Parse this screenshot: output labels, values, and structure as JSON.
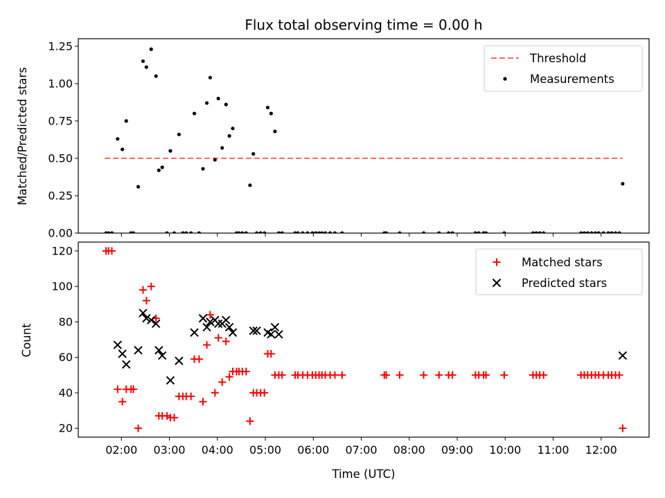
{
  "chart_data": [
    {
      "type": "scatter",
      "title": "Flux total observing time = 0.00 h",
      "xlabel": "",
      "ylabel": "Matched/Predicted stars",
      "xlim": [
        1.1,
        13.0
      ],
      "ylim": [
        0.0,
        1.3
      ],
      "yticks": [
        0.0,
        0.25,
        0.5,
        0.75,
        1.0,
        1.25
      ],
      "ytick_labels": [
        "0.00",
        "0.25",
        "0.50",
        "0.75",
        "1.00",
        "1.25"
      ],
      "xticks": [
        2,
        3,
        4,
        5,
        6,
        7,
        8,
        9,
        10,
        11,
        12
      ],
      "legend": [
        "Threshold",
        "Measurements"
      ],
      "legend_position": "top-right",
      "threshold": {
        "name": "Threshold",
        "y": 0.5,
        "x": [
          1.65,
          12.45
        ],
        "color": "#ff6666"
      },
      "series": [
        {
          "name": "Measurements",
          "color": "#000000",
          "x": [
            1.68,
            1.73,
            1.8,
            1.92,
            2.02,
            2.1,
            2.2,
            2.25,
            2.35,
            2.45,
            2.52,
            2.62,
            2.72,
            2.78,
            2.85,
            2.95,
            3.02,
            3.1,
            3.2,
            3.28,
            3.35,
            3.45,
            3.52,
            3.62,
            3.7,
            3.78,
            3.85,
            3.95,
            4.02,
            4.1,
            4.18,
            4.25,
            4.32,
            4.4,
            4.45,
            4.52,
            4.6,
            4.68,
            4.75,
            4.82,
            4.9,
            4.98,
            5.05,
            5.12,
            5.2,
            5.28,
            5.35,
            5.62,
            5.68,
            5.78,
            5.88,
            5.98,
            6.05,
            6.12,
            6.18,
            6.25,
            6.35,
            6.45,
            6.6,
            7.48,
            7.52,
            7.8,
            8.3,
            8.62,
            8.82,
            8.9,
            9.38,
            9.45,
            9.55,
            9.6,
            9.98,
            10.58,
            10.65,
            10.72,
            10.8,
            11.58,
            11.65,
            11.72,
            11.8,
            11.88,
            11.95,
            12.05,
            12.15,
            12.22,
            12.3,
            12.38,
            12.45
          ],
          "y": [
            0.0,
            0.0,
            0.0,
            0.63,
            0.56,
            0.75,
            0.0,
            0.0,
            0.31,
            1.15,
            1.11,
            1.23,
            1.05,
            0.42,
            0.44,
            0.0,
            0.55,
            0.0,
            0.66,
            0.0,
            0.0,
            0.0,
            0.8,
            0.0,
            0.43,
            0.87,
            1.04,
            0.49,
            0.9,
            0.57,
            0.86,
            0.65,
            0.7,
            0.0,
            0.0,
            0.0,
            0.0,
            0.32,
            0.53,
            0.0,
            0.0,
            0.0,
            0.84,
            0.8,
            0.68,
            0.0,
            0.0,
            0.0,
            0.0,
            0.0,
            0.0,
            0.0,
            0.0,
            0.0,
            0.0,
            0.0,
            0.0,
            0.0,
            0.0,
            0.0,
            0.0,
            0.0,
            0.0,
            0.0,
            0.0,
            0.0,
            0.0,
            0.0,
            0.0,
            0.0,
            0.0,
            0.0,
            0.0,
            0.0,
            0.0,
            0.0,
            0.0,
            0.0,
            0.0,
            0.0,
            0.0,
            0.0,
            0.0,
            0.0,
            0.0,
            0.0,
            0.33
          ]
        }
      ]
    },
    {
      "type": "scatter",
      "title": "",
      "xlabel": "Time (UTC)",
      "ylabel": "Count",
      "xlim": [
        1.1,
        13.0
      ],
      "ylim": [
        15,
        125
      ],
      "yticks": [
        20,
        40,
        60,
        80,
        100,
        120
      ],
      "ytick_labels": [
        "20",
        "40",
        "60",
        "80",
        "100",
        "120"
      ],
      "xticks": [
        2,
        3,
        4,
        5,
        6,
        7,
        8,
        9,
        10,
        11,
        12
      ],
      "xtick_labels": [
        "02:00",
        "03:00",
        "04:00",
        "05:00",
        "06:00",
        "07:00",
        "08:00",
        "09:00",
        "10:00",
        "11:00",
        "12:00"
      ],
      "legend": [
        "Matched stars",
        "Predicted stars"
      ],
      "legend_position": "top-right",
      "series": [
        {
          "name": "Matched stars",
          "marker": "plus",
          "color": "#ff0000",
          "x": [
            1.68,
            1.73,
            1.8,
            1.92,
            2.02,
            2.1,
            2.2,
            2.25,
            2.35,
            2.45,
            2.52,
            2.62,
            2.72,
            2.78,
            2.85,
            2.95,
            3.02,
            3.1,
            3.2,
            3.28,
            3.35,
            3.45,
            3.52,
            3.62,
            3.7,
            3.78,
            3.85,
            3.95,
            4.02,
            4.1,
            4.18,
            4.25,
            4.32,
            4.4,
            4.45,
            4.52,
            4.6,
            4.68,
            4.75,
            4.82,
            4.9,
            4.98,
            5.05,
            5.12,
            5.2,
            5.28,
            5.35,
            5.62,
            5.68,
            5.78,
            5.88,
            5.98,
            6.05,
            6.12,
            6.18,
            6.25,
            6.35,
            6.45,
            6.6,
            7.48,
            7.52,
            7.8,
            8.3,
            8.62,
            8.82,
            8.9,
            9.38,
            9.45,
            9.55,
            9.6,
            9.98,
            10.58,
            10.65,
            10.72,
            10.8,
            11.58,
            11.65,
            11.72,
            11.8,
            11.88,
            11.95,
            12.05,
            12.15,
            12.22,
            12.3,
            12.38,
            12.45
          ],
          "y": [
            120,
            120,
            120,
            42,
            35,
            42,
            42,
            42,
            20,
            98,
            92,
            100,
            82,
            27,
            27,
            27,
            26,
            26,
            38,
            38,
            38,
            38,
            59,
            59,
            35,
            67,
            84,
            40,
            71,
            46,
            69,
            49,
            52,
            52,
            52,
            52,
            52,
            24,
            40,
            40,
            40,
            40,
            62,
            62,
            50,
            50,
            50,
            50,
            50,
            50,
            50,
            50,
            50,
            50,
            50,
            50,
            50,
            50,
            50,
            50,
            50,
            50,
            50,
            50,
            50,
            50,
            50,
            50,
            50,
            50,
            50,
            50,
            50,
            50,
            50,
            50,
            50,
            50,
            50,
            50,
            50,
            50,
            50,
            50,
            50,
            50,
            20
          ]
        },
        {
          "name": "Predicted stars",
          "marker": "x",
          "color": "#000000",
          "x": [
            1.92,
            2.02,
            2.1,
            2.35,
            2.45,
            2.52,
            2.62,
            2.72,
            2.78,
            2.85,
            3.02,
            3.2,
            3.52,
            3.7,
            3.78,
            3.85,
            3.95,
            4.02,
            4.1,
            4.18,
            4.25,
            4.32,
            4.75,
            4.82,
            5.05,
            5.12,
            5.2,
            5.28,
            12.45
          ],
          "y": [
            67,
            62,
            56,
            64,
            85,
            82,
            81,
            79,
            64,
            61,
            47,
            58,
            74,
            82,
            77,
            80,
            81,
            79,
            79,
            81,
            77,
            74,
            75,
            75,
            74,
            73,
            77,
            73,
            61
          ]
        }
      ]
    }
  ]
}
